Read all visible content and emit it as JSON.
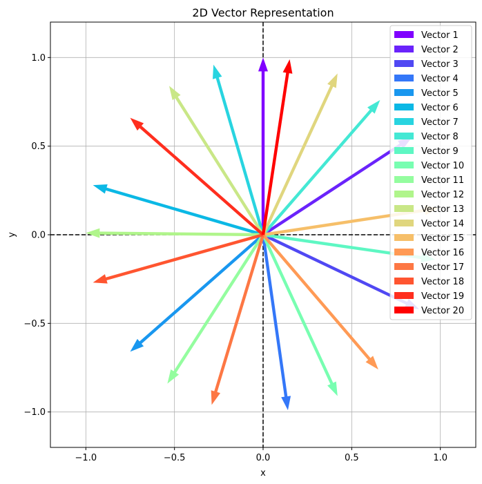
{
  "chart_data": {
    "type": "quiver",
    "title": "2D Vector Representation",
    "xlabel": "x",
    "ylabel": "y",
    "xlim": [
      -1.2,
      1.2
    ],
    "ylim": [
      -1.2,
      1.2
    ],
    "xticks": [
      -1.0,
      -0.5,
      0.0,
      0.5,
      1.0
    ],
    "yticks": [
      -1.0,
      -0.5,
      0.0,
      0.5,
      1.0
    ],
    "xtick_labels": [
      "−1.0",
      "−0.5",
      "0.0",
      "0.5",
      "1.0"
    ],
    "ytick_labels": [
      "−1.0",
      "−0.5",
      "0.0",
      "0.5",
      "1.0"
    ],
    "grid": true,
    "reference_lines": [
      "x=0 dashed",
      "y=0 dashed"
    ],
    "legend_position": "top-right",
    "series": [
      {
        "name": "Vector 1",
        "color": "#8000ff",
        "x": 0.0,
        "y": 1.0
      },
      {
        "name": "Vector 2",
        "color": "#6a23fb",
        "x": 0.84,
        "y": 0.55
      },
      {
        "name": "Vector 3",
        "color": "#5048f3",
        "x": 0.88,
        "y": -0.42
      },
      {
        "name": "Vector 4",
        "color": "#3477f8",
        "x": 0.14,
        "y": -0.99
      },
      {
        "name": "Vector 5",
        "color": "#1997ef",
        "x": -0.75,
        "y": -0.66
      },
      {
        "name": "Vector 6",
        "color": "#0bb8e5",
        "x": -0.96,
        "y": 0.28
      },
      {
        "name": "Vector 7",
        "color": "#28d4e0",
        "x": -0.28,
        "y": 0.96
      },
      {
        "name": "Vector 8",
        "color": "#44e8d4",
        "x": 0.66,
        "y": 0.76
      },
      {
        "name": "Vector 9",
        "color": "#5ef7c3",
        "x": 0.97,
        "y": -0.14
      },
      {
        "name": "Vector 10",
        "color": "#78feb1",
        "x": 0.42,
        "y": -0.91
      },
      {
        "name": "Vector 11",
        "color": "#94fd9f",
        "x": -0.54,
        "y": -0.84
      },
      {
        "name": "Vector 12",
        "color": "#b0f58b",
        "x": -1.0,
        "y": 0.01
      },
      {
        "name": "Vector 13",
        "color": "#c9e787",
        "x": -0.53,
        "y": 0.84
      },
      {
        "name": "Vector 14",
        "color": "#e0d67e",
        "x": 0.42,
        "y": 0.91
      },
      {
        "name": "Vector 15",
        "color": "#f6bf69",
        "x": 0.99,
        "y": 0.15
      },
      {
        "name": "Vector 16",
        "color": "#ff9a55",
        "x": 0.65,
        "y": -0.76
      },
      {
        "name": "Vector 17",
        "color": "#fd7744",
        "x": -0.29,
        "y": -0.96
      },
      {
        "name": "Vector 18",
        "color": "#ff5530",
        "x": -0.96,
        "y": -0.27
      },
      {
        "name": "Vector 19",
        "color": "#ff2e1e",
        "x": -0.75,
        "y": 0.66
      },
      {
        "name": "Vector 20",
        "color": "#ff0000",
        "x": 0.15,
        "y": 0.99
      }
    ]
  }
}
